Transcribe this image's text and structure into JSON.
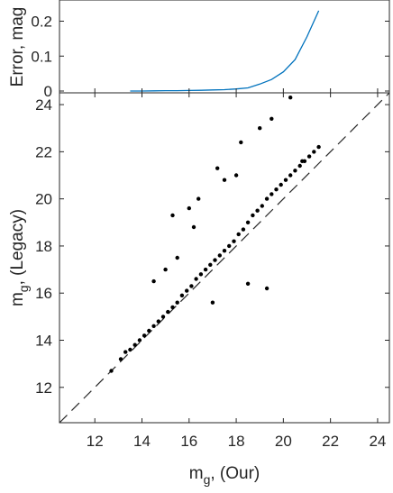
{
  "chart_data": [
    {
      "type": "line",
      "ylabel": "Error, mag",
      "xlim": [
        10.5,
        24.5
      ],
      "ylim": [
        0,
        0.24
      ],
      "yticks": [
        "0",
        "0.1",
        "0.2"
      ],
      "y_tick_values": [
        0,
        0.1,
        0.2
      ],
      "line_color": "#0072BD",
      "x": [
        13.5,
        14.0,
        14.5,
        15.0,
        15.5,
        16.0,
        16.5,
        17.0,
        17.5,
        18.0,
        18.5,
        19.0,
        19.5,
        20.0,
        20.5,
        21.0,
        21.5
      ],
      "y": [
        0.0,
        0.0,
        0.0005,
        0.001,
        0.001,
        0.0015,
        0.002,
        0.003,
        0.004,
        0.006,
        0.009,
        0.02,
        0.033,
        0.055,
        0.09,
        0.155,
        0.23
      ]
    },
    {
      "type": "scatter",
      "xlabel": "m_g, (Our)",
      "xlabel_main": "m",
      "xlabel_sub": "g",
      "xlabel_rest": ", (Our)",
      "ylabel": "m_g, (Legacy)",
      "ylabel_main": "m",
      "ylabel_sub": "g",
      "ylabel_rest": ", (Legacy)",
      "xlim": [
        10.5,
        24.5
      ],
      "ylim": [
        10.5,
        24.5
      ],
      "xticks": [
        "12",
        "14",
        "16",
        "18",
        "20",
        "22",
        "24"
      ],
      "x_tick_values": [
        12,
        14,
        16,
        18,
        20,
        22,
        24
      ],
      "yticks": [
        "12",
        "14",
        "16",
        "18",
        "20",
        "22",
        "24"
      ],
      "y_tick_values": [
        12,
        14,
        16,
        18,
        20,
        22,
        24
      ],
      "reference_line": "y = x (dashed)",
      "marker_color": "#000000",
      "points": [
        [
          12.7,
          12.7
        ],
        [
          13.1,
          13.2
        ],
        [
          13.3,
          13.5
        ],
        [
          13.5,
          13.6
        ],
        [
          13.7,
          13.8
        ],
        [
          13.9,
          14.0
        ],
        [
          14.1,
          14.2
        ],
        [
          14.3,
          14.4
        ],
        [
          14.5,
          14.6
        ],
        [
          14.7,
          14.8
        ],
        [
          14.9,
          15.0
        ],
        [
          15.1,
          15.2
        ],
        [
          15.3,
          15.4
        ],
        [
          15.5,
          15.6
        ],
        [
          15.7,
          15.9
        ],
        [
          15.9,
          16.1
        ],
        [
          16.1,
          16.3
        ],
        [
          16.3,
          16.6
        ],
        [
          16.5,
          16.8
        ],
        [
          16.7,
          17.0
        ],
        [
          16.9,
          17.2
        ],
        [
          17.1,
          17.4
        ],
        [
          17.3,
          17.6
        ],
        [
          17.5,
          17.8
        ],
        [
          17.7,
          18.0
        ],
        [
          17.9,
          18.2
        ],
        [
          18.1,
          18.5
        ],
        [
          18.3,
          18.7
        ],
        [
          18.5,
          19.0
        ],
        [
          18.7,
          19.3
        ],
        [
          18.9,
          19.5
        ],
        [
          19.1,
          19.7
        ],
        [
          19.3,
          20.0
        ],
        [
          19.5,
          20.2
        ],
        [
          19.7,
          20.4
        ],
        [
          19.9,
          20.6
        ],
        [
          20.1,
          20.8
        ],
        [
          20.3,
          21.0
        ],
        [
          20.5,
          21.2
        ],
        [
          20.7,
          21.4
        ],
        [
          20.9,
          21.6
        ],
        [
          21.1,
          21.8
        ],
        [
          21.3,
          22.0
        ],
        [
          16.0,
          19.6
        ],
        [
          17.5,
          20.8
        ],
        [
          14.5,
          16.5
        ],
        [
          15.5,
          17.5
        ],
        [
          18.2,
          22.4
        ],
        [
          20.3,
          24.3
        ],
        [
          19.3,
          16.2
        ],
        [
          18.5,
          16.4
        ],
        [
          19.0,
          23.0
        ],
        [
          16.4,
          20.0
        ],
        [
          17.2,
          21.3
        ],
        [
          15.3,
          19.3
        ],
        [
          15.0,
          17.0
        ],
        [
          18.0,
          21.0
        ],
        [
          19.5,
          23.4
        ],
        [
          21.5,
          22.2
        ],
        [
          20.8,
          21.6
        ],
        [
          17.0,
          15.6
        ],
        [
          16.2,
          18.8
        ]
      ]
    }
  ]
}
